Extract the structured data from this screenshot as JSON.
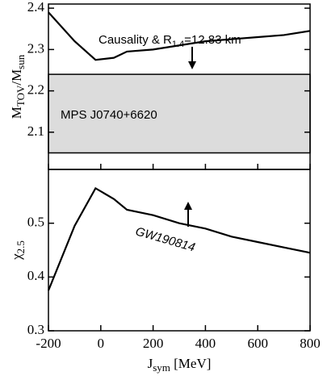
{
  "chart_data": [
    {
      "type": "line",
      "ylabel": [
        "M",
        "TOV",
        "/M",
        "sun"
      ],
      "x": [
        -200,
        -100,
        -20,
        50,
        100,
        200,
        300,
        400,
        500,
        600,
        700,
        800
      ],
      "series": [
        {
          "name": "Causality & R1.4=12.83 km",
          "color": "#000000",
          "values": [
            2.39,
            2.32,
            2.275,
            2.28,
            2.295,
            2.3,
            2.31,
            2.32,
            2.325,
            2.33,
            2.335,
            2.345
          ]
        }
      ],
      "annotation": [
        "Causality & R",
        "1.4",
        "=12.83 km"
      ],
      "band": [
        2.05,
        2.24
      ],
      "band_color": "#dcdcdc",
      "band_label": "MPS J0740+6620",
      "xlim": [
        -200,
        800
      ],
      "xticks": [
        -200,
        0,
        200,
        400,
        600,
        800
      ],
      "ylim": [
        2.01,
        2.41
      ],
      "yticks": [
        2.1,
        2.2,
        2.3,
        2.4
      ]
    },
    {
      "type": "line",
      "ylabel": [
        "χ",
        "2.5"
      ],
      "xlabel": [
        "J",
        "sym",
        " [MeV]"
      ],
      "x": [
        -200,
        -100,
        -20,
        50,
        100,
        200,
        300,
        400,
        500,
        600,
        700,
        800
      ],
      "series": [
        {
          "name": "GW190814",
          "color": "#000000",
          "values": [
            0.375,
            0.495,
            0.565,
            0.545,
            0.525,
            0.515,
            0.5,
            0.49,
            0.475,
            0.465,
            0.455,
            0.445
          ]
        }
      ],
      "annotation": [
        "GW190814"
      ],
      "xlim": [
        -200,
        800
      ],
      "xticks": [
        -200,
        0,
        200,
        400,
        600,
        800
      ],
      "ylim": [
        0.3,
        0.6
      ],
      "yticks": [
        0.3,
        0.4,
        0.5
      ]
    }
  ]
}
